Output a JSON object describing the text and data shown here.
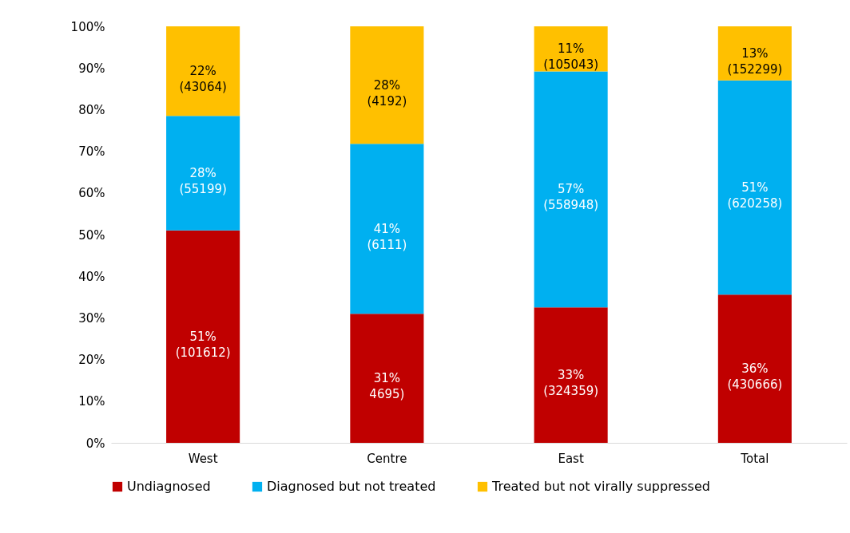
{
  "chart_data": {
    "type": "bar",
    "stacked": true,
    "categories": [
      "West",
      "Centre",
      "East",
      "Total"
    ],
    "series": [
      {
        "name": "Undiagnosed",
        "color": "#c00000",
        "values": [
          51,
          31.0,
          32.5,
          35.6
        ],
        "value_labels": [
          "51%\n(101612)",
          "31%\n4695)",
          "33%\n(324359)",
          "36%\n(430666)"
        ]
      },
      {
        "name": "Diagnosed but not treated",
        "color": "#00b0f0",
        "values": [
          27.5,
          40.8,
          56.7,
          51.4
        ],
        "value_labels": [
          "28%\n(55199)",
          "41%\n(6111)",
          "57%\n(558948)",
          "51%\n(620258)"
        ]
      },
      {
        "name": "Treated but not virally suppressed",
        "color": "#ffc000",
        "values": [
          21.5,
          28.2,
          10.8,
          13
        ],
        "value_labels": [
          "22%\n(43064)",
          "28%\n(4192)",
          "11%\n(105043)",
          "13%\n(152299)"
        ]
      }
    ],
    "ylim": [
      0,
      100
    ],
    "yticks": [
      {
        "value": 0,
        "label": "0%"
      },
      {
        "value": 10,
        "label": "10%"
      },
      {
        "value": 20,
        "label": "20%"
      },
      {
        "value": 30,
        "label": "30%"
      },
      {
        "value": 40,
        "label": "40%"
      },
      {
        "value": 50,
        "label": "50%"
      },
      {
        "value": 60,
        "label": "60%"
      },
      {
        "value": 70,
        "label": "70%"
      },
      {
        "value": 80,
        "label": "80%"
      },
      {
        "value": 90,
        "label": "90%"
      },
      {
        "value": 100,
        "label": "100%"
      }
    ],
    "grid": false,
    "legend": "bottom"
  }
}
